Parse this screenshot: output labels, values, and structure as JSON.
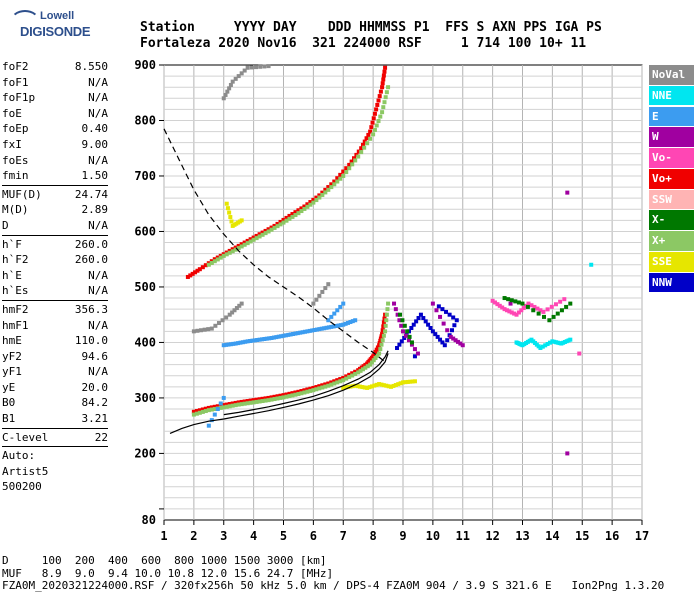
{
  "logo": {
    "line1": "Lowell",
    "line2": "DIGISONDE"
  },
  "header": {
    "labels": "Station     YYYY DAY    DDD HHMMSS P1  FFS S AXN PPS IGA PS",
    "values": "Fortaleza 2020 Nov16  321 224000 RSF     1 714 100 10+ 11"
  },
  "params": {
    "group1": [
      {
        "k": "foF2",
        "v": "8.550"
      },
      {
        "k": "foF1",
        "v": "N/A"
      },
      {
        "k": "foF1p",
        "v": "N/A"
      },
      {
        "k": "foE",
        "v": "N/A"
      },
      {
        "k": "foEp",
        "v": "0.40"
      },
      {
        "k": "fxI",
        "v": "9.00"
      },
      {
        "k": "foEs",
        "v": "N/A"
      },
      {
        "k": "fmin",
        "v": "1.50"
      }
    ],
    "group2": [
      {
        "k": "MUF(D)",
        "v": "24.74"
      },
      {
        "k": "M(D)",
        "v": "2.89"
      },
      {
        "k": "D",
        "v": "N/A"
      }
    ],
    "group3": [
      {
        "k": "h`F",
        "v": "260.0"
      },
      {
        "k": "h`F2",
        "v": "260.0"
      },
      {
        "k": "h`E",
        "v": "N/A"
      },
      {
        "k": "h`Es",
        "v": "N/A"
      }
    ],
    "group4": [
      {
        "k": "hmF2",
        "v": "356.3"
      },
      {
        "k": "hmF1",
        "v": "N/A"
      },
      {
        "k": "hmE",
        "v": "110.0"
      },
      {
        "k": "yF2",
        "v": "94.6"
      },
      {
        "k": "yF1",
        "v": "N/A"
      },
      {
        "k": "yE",
        "v": "20.0"
      },
      {
        "k": "B0",
        "v": "84.2"
      },
      {
        "k": "B1",
        "v": "3.21"
      }
    ],
    "group5": [
      {
        "k": "C-level",
        "v": "22"
      }
    ],
    "notes": [
      "Auto:",
      "Artist5",
      "500200"
    ]
  },
  "legend": [
    {
      "label": "NoVal",
      "color": "#8c8c8c"
    },
    {
      "label": "NNE",
      "color": "#00e6f0"
    },
    {
      "label": "E",
      "color": "#3c9cf0"
    },
    {
      "label": "W",
      "color": "#a000a0"
    },
    {
      "label": "Vo-",
      "color": "#ff46b4"
    },
    {
      "label": "Vo+",
      "color": "#f00000"
    },
    {
      "label": "SSW",
      "color": "#ffb4b4"
    },
    {
      "label": "X-",
      "color": "#007800"
    },
    {
      "label": "X+",
      "color": "#8cc864"
    },
    {
      "label": "SSE",
      "color": "#e6e600"
    },
    {
      "label": "NNW",
      "color": "#0000c8"
    }
  ],
  "chart_data": {
    "type": "scatter",
    "xlim": [
      1,
      17
    ],
    "ylim": [
      80,
      900
    ],
    "x_ticks": [
      "1",
      "2",
      "3",
      "4",
      "5",
      "6",
      "7",
      "8",
      "9",
      "10",
      "11",
      "12",
      "13",
      "14",
      "15",
      "16",
      "17"
    ],
    "y_ticks": [
      {
        "v": 900,
        "label": "900"
      },
      {
        "v": 800,
        "label": "800"
      },
      {
        "v": 700,
        "label": "700"
      },
      {
        "v": 600,
        "label": "600"
      },
      {
        "v": 500,
        "label": "500"
      },
      {
        "v": 400,
        "label": "400"
      },
      {
        "v": 300,
        "label": "300"
      },
      {
        "v": 200,
        "label": "200"
      },
      {
        "v": 80,
        "label": "80"
      }
    ],
    "grid": true,
    "series": [
      {
        "color": "#f00000",
        "points": [
          [
            2.0,
            275
          ],
          [
            2.5,
            282
          ],
          [
            3.0,
            287
          ],
          [
            3.5,
            292
          ],
          [
            4.0,
            296
          ],
          [
            4.5,
            300
          ],
          [
            5.0,
            305
          ],
          [
            5.5,
            311
          ],
          [
            6.0,
            318
          ],
          [
            6.5,
            326
          ],
          [
            7.0,
            336
          ],
          [
            7.5,
            350
          ],
          [
            7.8,
            362
          ],
          [
            8.0,
            375
          ],
          [
            8.2,
            395
          ],
          [
            8.3,
            415
          ],
          [
            8.4,
            450
          ]
        ]
      },
      {
        "color": "#f00000",
        "points": [
          [
            1.8,
            518
          ],
          [
            2.2,
            532
          ],
          [
            2.7,
            550
          ],
          [
            3.2,
            565
          ],
          [
            3.7,
            580
          ],
          [
            4.2,
            595
          ],
          [
            4.7,
            610
          ],
          [
            5.2,
            628
          ],
          [
            5.7,
            645
          ],
          [
            6.2,
            665
          ],
          [
            6.7,
            690
          ],
          [
            7.2,
            720
          ],
          [
            7.6,
            750
          ],
          [
            7.9,
            780
          ],
          [
            8.1,
            820
          ],
          [
            8.3,
            860
          ],
          [
            8.4,
            895
          ]
        ]
      },
      {
        "color": "#8cc864",
        "points": [
          [
            2.0,
            270
          ],
          [
            2.5,
            278
          ],
          [
            3.0,
            283
          ],
          [
            3.5,
            288
          ],
          [
            4.0,
            292
          ],
          [
            4.5,
            296
          ],
          [
            5.0,
            301
          ],
          [
            5.5,
            307
          ],
          [
            6.0,
            314
          ],
          [
            6.5,
            322
          ],
          [
            7.0,
            332
          ],
          [
            7.5,
            346
          ],
          [
            7.9,
            360
          ],
          [
            8.2,
            380
          ],
          [
            8.4,
            420
          ],
          [
            8.5,
            470
          ]
        ]
      },
      {
        "color": "#8cc864",
        "points": [
          [
            2.5,
            540
          ],
          [
            3.0,
            556
          ],
          [
            3.5,
            570
          ],
          [
            4.0,
            585
          ],
          [
            4.5,
            600
          ],
          [
            5.0,
            616
          ],
          [
            5.5,
            633
          ],
          [
            6.0,
            652
          ],
          [
            6.5,
            675
          ],
          [
            7.0,
            700
          ],
          [
            7.5,
            735
          ],
          [
            8.0,
            775
          ],
          [
            8.3,
            815
          ],
          [
            8.5,
            860
          ]
        ]
      },
      {
        "color": "#3c9cf0",
        "points": [
          [
            3.0,
            395
          ],
          [
            3.4,
            398
          ],
          [
            3.8,
            402
          ],
          [
            4.2,
            405
          ],
          [
            4.6,
            408
          ],
          [
            5.0,
            412
          ],
          [
            5.4,
            416
          ],
          [
            5.8,
            420
          ],
          [
            6.2,
            424
          ],
          [
            6.6,
            428
          ],
          [
            7.0,
            432
          ],
          [
            7.4,
            440
          ],
          [
            2.5,
            250
          ],
          [
            3.0,
            300
          ],
          [
            6.5,
            440
          ],
          [
            7.0,
            470
          ]
        ]
      },
      {
        "color": "#e6e600",
        "points": [
          [
            7.0,
            318
          ],
          [
            7.4,
            322
          ],
          [
            7.8,
            318
          ],
          [
            8.2,
            325
          ],
          [
            8.6,
            320
          ],
          [
            9.0,
            328
          ],
          [
            9.4,
            330
          ],
          [
            3.1,
            650
          ],
          [
            3.3,
            610
          ],
          [
            3.6,
            620
          ]
        ]
      },
      {
        "color": "#0000c8",
        "points": [
          [
            8.8,
            390
          ],
          [
            9.2,
            420
          ],
          [
            9.6,
            450
          ],
          [
            10.0,
            420
          ],
          [
            10.4,
            395
          ],
          [
            10.8,
            440
          ],
          [
            10.2,
            465
          ],
          [
            9.4,
            375
          ]
        ]
      },
      {
        "color": "#a000a0",
        "points": [
          [
            8.7,
            470
          ],
          [
            9.0,
            420
          ],
          [
            9.5,
            380
          ],
          [
            10.0,
            470
          ],
          [
            10.6,
            410
          ],
          [
            11.0,
            395
          ],
          [
            12.6,
            470
          ],
          [
            14.5,
            670
          ],
          [
            14.5,
            200
          ]
        ]
      },
      {
        "color": "#00e6f0",
        "points": [
          [
            12.8,
            400
          ],
          [
            13.0,
            395
          ],
          [
            13.3,
            405
          ],
          [
            13.6,
            390
          ],
          [
            14.0,
            402
          ],
          [
            14.3,
            398
          ],
          [
            14.6,
            405
          ],
          [
            15.3,
            540
          ]
        ]
      },
      {
        "color": "#ff46b4",
        "points": [
          [
            12.0,
            475
          ],
          [
            12.4,
            460
          ],
          [
            12.8,
            450
          ],
          [
            13.2,
            470
          ],
          [
            13.7,
            455
          ],
          [
            14.4,
            478
          ],
          [
            14.9,
            380
          ]
        ]
      },
      {
        "color": "#007800",
        "points": [
          [
            8.9,
            450
          ],
          [
            9.3,
            400
          ],
          [
            12.4,
            480
          ],
          [
            13.0,
            470
          ],
          [
            13.9,
            440
          ],
          [
            14.6,
            470
          ]
        ]
      },
      {
        "color": "#8c8c8c",
        "points": [
          [
            3.0,
            840
          ],
          [
            3.3,
            870
          ],
          [
            3.8,
            895
          ],
          [
            4.5,
            898
          ],
          [
            2.0,
            420
          ],
          [
            2.6,
            425
          ],
          [
            3.2,
            450
          ],
          [
            3.6,
            470
          ],
          [
            6.0,
            470
          ],
          [
            6.5,
            505
          ]
        ]
      }
    ],
    "profile_curves": [
      {
        "style": "solid",
        "points": [
          [
            1.2,
            236
          ],
          [
            1.6,
            245
          ],
          [
            2.0,
            252
          ],
          [
            2.5,
            258
          ],
          [
            3.0,
            262
          ],
          [
            3.5,
            267
          ],
          [
            4.0,
            272
          ],
          [
            4.5,
            277
          ],
          [
            5.0,
            283
          ],
          [
            5.5,
            289
          ],
          [
            6.0,
            296
          ],
          [
            6.5,
            304
          ],
          [
            7.0,
            314
          ],
          [
            7.5,
            326
          ],
          [
            7.9,
            338
          ],
          [
            8.2,
            352
          ],
          [
            8.4,
            365
          ],
          [
            8.5,
            380
          ]
        ]
      },
      {
        "style": "solid",
        "points": [
          [
            3.0,
            270
          ],
          [
            3.5,
            274
          ],
          [
            4.0,
            279
          ],
          [
            4.5,
            284
          ],
          [
            5.0,
            290
          ],
          [
            5.5,
            296
          ],
          [
            6.0,
            303
          ],
          [
            6.5,
            312
          ],
          [
            7.0,
            322
          ],
          [
            7.5,
            334
          ],
          [
            7.9,
            346
          ],
          [
            8.2,
            360
          ],
          [
            8.4,
            374
          ],
          [
            8.5,
            385
          ]
        ]
      },
      {
        "style": "dashed",
        "points": [
          [
            1.0,
            785
          ],
          [
            1.5,
            730
          ],
          [
            2.0,
            675
          ],
          [
            2.5,
            630
          ],
          [
            3.0,
            595
          ],
          [
            3.5,
            565
          ],
          [
            4.0,
            540
          ],
          [
            4.5,
            518
          ],
          [
            5.0,
            500
          ],
          [
            5.5,
            482
          ],
          [
            6.0,
            462
          ],
          [
            6.5,
            440
          ],
          [
            7.0,
            420
          ],
          [
            7.5,
            400
          ],
          [
            8.0,
            382
          ],
          [
            8.4,
            365
          ]
        ]
      }
    ]
  },
  "footer": {
    "line1": "D     100  200  400  600  800 1000 1500 3000 [km]",
    "line2": "MUF   8.9  9.0  9.4 10.0 10.8 12.0 15.6 24.7 [MHz]",
    "line3": "FZA0M_2020321224000.RSF / 320fx256h 50 kHz 5.0 km / DPS-4 FZA0M 904 / 3.9 S 321.6 E   Ion2Png 1.3.20"
  }
}
